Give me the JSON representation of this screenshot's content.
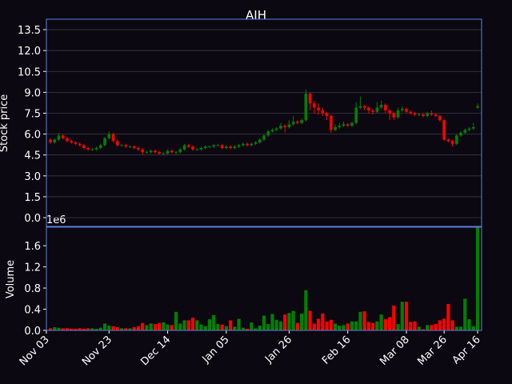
{
  "chart_data": {
    "type": "candlestick",
    "title": "AIH",
    "ylabel": "Stock price",
    "categories": [
      "Nov 03",
      null,
      null,
      null,
      null,
      null,
      null,
      null,
      null,
      null,
      null,
      null,
      null,
      null,
      "Nov 23",
      null,
      null,
      null,
      null,
      null,
      null,
      null,
      null,
      null,
      null,
      null,
      null,
      null,
      "Dec 14",
      null,
      null,
      null,
      null,
      null,
      null,
      null,
      null,
      null,
      null,
      null,
      null,
      null,
      "Jan 05",
      null,
      null,
      null,
      null,
      null,
      null,
      null,
      null,
      null,
      null,
      null,
      null,
      null,
      null,
      "Jan 26",
      null,
      null,
      null,
      null,
      null,
      null,
      null,
      null,
      null,
      null,
      null,
      null,
      null,
      "Feb 16",
      null,
      null,
      null,
      null,
      null,
      null,
      null,
      null,
      null,
      null,
      null,
      null,
      null,
      "Mar 08",
      null,
      null,
      null,
      null,
      null,
      null,
      null,
      null,
      "Mar 26",
      null,
      null,
      null,
      null,
      null,
      null,
      null,
      "Apr 16"
    ],
    "open": [
      5.6,
      5.4,
      5.6,
      5.9,
      5.7,
      5.5,
      5.4,
      5.3,
      5.2,
      5.0,
      4.9,
      4.9,
      5.0,
      5.2,
      5.7,
      6.0,
      5.5,
      5.2,
      5.2,
      5.1,
      5.1,
      5.0,
      4.9,
      4.7,
      4.7,
      4.8,
      4.7,
      4.6,
      4.6,
      4.8,
      4.7,
      4.7,
      4.9,
      5.2,
      5.1,
      4.9,
      4.9,
      5.0,
      5.1,
      5.1,
      5.2,
      5.2,
      5.0,
      5.1,
      5.0,
      5.1,
      5.2,
      5.3,
      5.2,
      5.3,
      5.4,
      5.6,
      5.9,
      6.2,
      6.3,
      6.4,
      6.6,
      6.5,
      6.7,
      6.9,
      6.8,
      7.0,
      8.9,
      8.2,
      7.9,
      7.7,
      7.5,
      7.3,
      6.3,
      6.5,
      6.6,
      6.7,
      6.6,
      6.8,
      7.9,
      8.0,
      7.9,
      7.7,
      7.6,
      7.9,
      8.1,
      7.7,
      7.5,
      7.2,
      7.7,
      7.8,
      7.6,
      7.5,
      7.4,
      7.4,
      7.3,
      7.5,
      7.4,
      7.3,
      7.0,
      5.6,
      5.5,
      5.3,
      5.9,
      6.1,
      6.3,
      6.4,
      7.9
    ],
    "high": [
      5.7,
      5.7,
      6.1,
      6.0,
      5.8,
      5.6,
      5.5,
      5.4,
      5.3,
      5.1,
      5.0,
      5.1,
      5.3,
      5.8,
      6.2,
      6.1,
      5.6,
      5.3,
      5.3,
      5.2,
      5.2,
      5.1,
      5.0,
      4.8,
      4.9,
      4.9,
      4.8,
      4.7,
      4.9,
      4.9,
      4.8,
      5.0,
      5.3,
      5.3,
      5.2,
      5.0,
      5.1,
      5.2,
      5.2,
      5.3,
      5.3,
      5.3,
      5.2,
      5.2,
      5.2,
      5.3,
      5.4,
      5.4,
      5.4,
      5.5,
      5.7,
      6.0,
      6.3,
      6.4,
      6.5,
      6.8,
      6.7,
      7.0,
      7.3,
      7.0,
      7.1,
      9.2,
      9.0,
      8.4,
      8.2,
      7.9,
      7.6,
      7.4,
      6.7,
      6.8,
      6.9,
      6.8,
      6.9,
      8.3,
      8.7,
      8.1,
      8.0,
      7.8,
      8.3,
      8.4,
      8.2,
      7.8,
      7.6,
      7.9,
      8.0,
      7.9,
      7.7,
      7.6,
      7.5,
      7.5,
      7.6,
      7.7,
      7.5,
      7.4,
      7.1,
      5.7,
      5.6,
      6.0,
      6.2,
      6.4,
      6.5,
      6.8,
      8.2
    ],
    "low": [
      5.3,
      5.3,
      5.5,
      5.6,
      5.4,
      5.3,
      5.2,
      5.1,
      4.9,
      4.8,
      4.8,
      4.8,
      4.9,
      5.1,
      5.6,
      5.4,
      5.1,
      5.1,
      5.0,
      5.0,
      4.9,
      4.8,
      4.5,
      4.6,
      4.6,
      4.6,
      4.5,
      4.5,
      4.5,
      4.6,
      4.5,
      4.6,
      4.8,
      5.0,
      4.8,
      4.8,
      4.8,
      4.9,
      5.0,
      5.0,
      5.1,
      4.9,
      4.9,
      4.9,
      4.9,
      5.0,
      5.1,
      5.1,
      5.1,
      5.2,
      5.3,
      5.5,
      5.8,
      6.1,
      6.2,
      6.3,
      6.1,
      6.4,
      6.6,
      6.7,
      6.7,
      6.9,
      7.7,
      7.5,
      7.4,
      7.3,
      7.0,
      6.1,
      6.2,
      6.4,
      6.5,
      6.5,
      6.5,
      6.7,
      7.8,
      7.7,
      7.5,
      7.4,
      7.5,
      7.8,
      7.5,
      7.0,
      7.0,
      7.1,
      7.6,
      7.5,
      7.4,
      7.3,
      7.3,
      7.2,
      7.2,
      7.3,
      7.2,
      6.9,
      5.5,
      5.4,
      5.1,
      5.2,
      5.8,
      6.0,
      6.2,
      6.3,
      7.8
    ],
    "close": [
      5.4,
      5.6,
      5.9,
      5.7,
      5.5,
      5.4,
      5.3,
      5.2,
      5.0,
      4.9,
      4.9,
      5.0,
      5.2,
      5.7,
      6.0,
      5.5,
      5.2,
      5.2,
      5.1,
      5.1,
      5.0,
      4.9,
      4.7,
      4.7,
      4.8,
      4.7,
      4.6,
      4.6,
      4.8,
      4.7,
      4.7,
      4.9,
      5.2,
      5.1,
      4.9,
      4.9,
      5.0,
      5.1,
      5.1,
      5.2,
      5.2,
      5.0,
      5.1,
      5.0,
      5.1,
      5.2,
      5.3,
      5.2,
      5.3,
      5.4,
      5.6,
      5.9,
      6.2,
      6.3,
      6.4,
      6.6,
      6.5,
      6.7,
      6.9,
      6.8,
      7.0,
      8.9,
      8.2,
      7.9,
      7.7,
      7.5,
      7.3,
      6.3,
      6.5,
      6.6,
      6.7,
      6.6,
      6.8,
      7.9,
      8.0,
      7.9,
      7.7,
      7.6,
      7.9,
      8.1,
      7.7,
      7.5,
      7.2,
      7.7,
      7.8,
      7.6,
      7.5,
      7.4,
      7.4,
      7.3,
      7.5,
      7.4,
      7.3,
      7.0,
      5.6,
      5.5,
      5.3,
      5.9,
      6.1,
      6.3,
      6.4,
      6.5,
      8.0
    ],
    "ylim": [
      -0.63,
      14.25
    ],
    "yticks": [
      {
        "value": 0,
        "label": "0.0"
      },
      1.5,
      {
        "value": 3,
        "label": "3.0"
      },
      4.5,
      {
        "value": 6,
        "label": "6.0"
      },
      7.5,
      {
        "value": 9,
        "label": "9.0"
      },
      10.5,
      {
        "value": 12,
        "label": "12.0"
      },
      13.5
    ],
    "grid": true,
    "up_color": "#008000",
    "down_color": "#ff0000",
    "volume": {
      "label": "Volume",
      "offset_label": "1e6",
      "values": [
        40000,
        60000,
        50000,
        40000,
        40000,
        30000,
        30000,
        40000,
        30000,
        40000,
        40000,
        30000,
        50000,
        130000,
        90000,
        80000,
        60000,
        40000,
        40000,
        40000,
        60000,
        80000,
        140000,
        100000,
        130000,
        120000,
        140000,
        150000,
        110000,
        100000,
        350000,
        130000,
        190000,
        190000,
        240000,
        190000,
        110000,
        80000,
        210000,
        290000,
        120000,
        110000,
        80000,
        190000,
        70000,
        220000,
        50000,
        30000,
        150000,
        40000,
        90000,
        280000,
        120000,
        310000,
        200000,
        170000,
        300000,
        330000,
        370000,
        140000,
        320000,
        760000,
        370000,
        130000,
        220000,
        320000,
        170000,
        200000,
        130000,
        90000,
        100000,
        130000,
        170000,
        170000,
        350000,
        360000,
        160000,
        140000,
        170000,
        300000,
        210000,
        250000,
        470000,
        120000,
        540000,
        540000,
        160000,
        170000,
        70000,
        20000,
        100000,
        100000,
        120000,
        190000,
        220000,
        500000,
        190000,
        70000,
        70000,
        600000,
        210000,
        80000,
        1950000
      ],
      "ylim": [
        0,
        1950000
      ],
      "yticks": [
        {
          "value": 0,
          "label": "0.0"
        },
        {
          "value": 400000,
          "label": "0.4"
        },
        {
          "value": 800000,
          "label": "0.8"
        },
        {
          "value": 1200000,
          "label": "1.2"
        },
        {
          "value": 1600000,
          "label": "1.6"
        }
      ]
    }
  }
}
